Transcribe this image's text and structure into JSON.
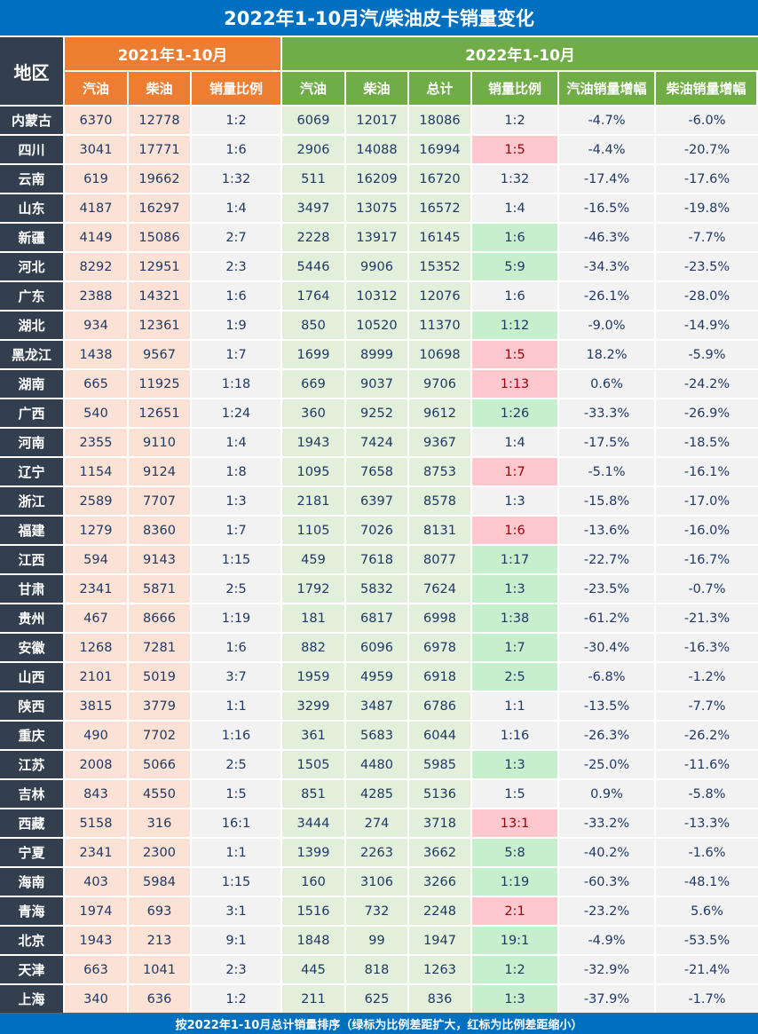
{
  "title": "2022年1-10月汽/柴油皮卡销量变化",
  "footer": "按2022年1-10月总计销量排序（绿标为比例差距扩大，红标为比例差距缩小）",
  "colors": {
    "title_bg": "#0070c0",
    "region_bg": "#333f4f",
    "header_2021": "#ed7d31",
    "header_2022": "#70ad47",
    "cell_2021": "#fbe2d5",
    "cell_2022": "#e2efda",
    "highlight_green": "#c6efce",
    "highlight_red": "#ffc7ce"
  },
  "chart_data": {
    "type": "table",
    "header": {
      "region": "地区",
      "group_2021": "2021年1-10月",
      "group_2022": "2022年1-10月"
    },
    "columns": [
      "汽油",
      "柴油",
      "销量比例",
      "汽油",
      "柴油",
      "总计",
      "销量比例",
      "汽油销量增幅",
      "柴油销量增幅"
    ],
    "rows": [
      {
        "region": "内蒙古",
        "values": [
          "6370",
          "12778",
          "1:2",
          "6069",
          "12017",
          "18086",
          "1:2",
          "-4.7%",
          "-6.0%"
        ],
        "ratio_mark": ""
      },
      {
        "region": "四川",
        "values": [
          "3041",
          "17771",
          "1:6",
          "2906",
          "14088",
          "16994",
          "1:5",
          "-4.4%",
          "-20.7%"
        ],
        "ratio_mark": "red"
      },
      {
        "region": "云南",
        "values": [
          "619",
          "19662",
          "1:32",
          "511",
          "16209",
          "16720",
          "1:32",
          "-17.4%",
          "-17.6%"
        ],
        "ratio_mark": ""
      },
      {
        "region": "山东",
        "values": [
          "4187",
          "16297",
          "1:4",
          "3497",
          "13075",
          "16572",
          "1:4",
          "-16.5%",
          "-19.8%"
        ],
        "ratio_mark": ""
      },
      {
        "region": "新疆",
        "values": [
          "4149",
          "15086",
          "2:7",
          "2228",
          "13917",
          "16145",
          "1:6",
          "-46.3%",
          "-7.7%"
        ],
        "ratio_mark": "green"
      },
      {
        "region": "河北",
        "values": [
          "8292",
          "12951",
          "2:3",
          "5446",
          "9906",
          "15352",
          "5:9",
          "-34.3%",
          "-23.5%"
        ],
        "ratio_mark": "green"
      },
      {
        "region": "广东",
        "values": [
          "2388",
          "14321",
          "1:6",
          "1764",
          "10312",
          "12076",
          "1:6",
          "-26.1%",
          "-28.0%"
        ],
        "ratio_mark": ""
      },
      {
        "region": "湖北",
        "values": [
          "934",
          "12361",
          "1:9",
          "850",
          "10520",
          "11370",
          "1:12",
          "-9.0%",
          "-14.9%"
        ],
        "ratio_mark": "green"
      },
      {
        "region": "黑龙江",
        "values": [
          "1438",
          "9567",
          "1:7",
          "1699",
          "8999",
          "10698",
          "1:5",
          "18.2%",
          "-5.9%"
        ],
        "ratio_mark": "red"
      },
      {
        "region": "湖南",
        "values": [
          "665",
          "11925",
          "1:18",
          "669",
          "9037",
          "9706",
          "1:13",
          "0.6%",
          "-24.2%"
        ],
        "ratio_mark": "red"
      },
      {
        "region": "广西",
        "values": [
          "540",
          "12651",
          "1:24",
          "360",
          "9252",
          "9612",
          "1:26",
          "-33.3%",
          "-26.9%"
        ],
        "ratio_mark": "green"
      },
      {
        "region": "河南",
        "values": [
          "2355",
          "9110",
          "1:4",
          "1943",
          "7424",
          "9367",
          "1:4",
          "-17.5%",
          "-18.5%"
        ],
        "ratio_mark": ""
      },
      {
        "region": "辽宁",
        "values": [
          "1154",
          "9124",
          "1:8",
          "1095",
          "7658",
          "8753",
          "1:7",
          "-5.1%",
          "-16.1%"
        ],
        "ratio_mark": "red"
      },
      {
        "region": "浙江",
        "values": [
          "2589",
          "7707",
          "1:3",
          "2181",
          "6397",
          "8578",
          "1:3",
          "-15.8%",
          "-17.0%"
        ],
        "ratio_mark": ""
      },
      {
        "region": "福建",
        "values": [
          "1279",
          "8360",
          "1:7",
          "1105",
          "7026",
          "8131",
          "1:6",
          "-13.6%",
          "-16.0%"
        ],
        "ratio_mark": "red"
      },
      {
        "region": "江西",
        "values": [
          "594",
          "9143",
          "1:15",
          "459",
          "7618",
          "8077",
          "1:17",
          "-22.7%",
          "-16.7%"
        ],
        "ratio_mark": "green"
      },
      {
        "region": "甘肃",
        "values": [
          "2341",
          "5871",
          "2:5",
          "1792",
          "5832",
          "7624",
          "1:3",
          "-23.5%",
          "-0.7%"
        ],
        "ratio_mark": "green"
      },
      {
        "region": "贵州",
        "values": [
          "467",
          "8666",
          "1:19",
          "181",
          "6817",
          "6998",
          "1:38",
          "-61.2%",
          "-21.3%"
        ],
        "ratio_mark": "green"
      },
      {
        "region": "安徽",
        "values": [
          "1268",
          "7281",
          "1:6",
          "882",
          "6096",
          "6978",
          "1:7",
          "-30.4%",
          "-16.3%"
        ],
        "ratio_mark": "green"
      },
      {
        "region": "山西",
        "values": [
          "2101",
          "5019",
          "3:7",
          "1959",
          "4959",
          "6918",
          "2:5",
          "-6.8%",
          "-1.2%"
        ],
        "ratio_mark": "green"
      },
      {
        "region": "陕西",
        "values": [
          "3815",
          "3779",
          "1:1",
          "3299",
          "3487",
          "6786",
          "1:1",
          "-13.5%",
          "-7.7%"
        ],
        "ratio_mark": ""
      },
      {
        "region": "重庆",
        "values": [
          "490",
          "7702",
          "1:16",
          "361",
          "5683",
          "6044",
          "1:16",
          "-26.3%",
          "-26.2%"
        ],
        "ratio_mark": ""
      },
      {
        "region": "江苏",
        "values": [
          "2008",
          "5066",
          "2:5",
          "1505",
          "4480",
          "5985",
          "1:3",
          "-25.0%",
          "-11.6%"
        ],
        "ratio_mark": "green"
      },
      {
        "region": "吉林",
        "values": [
          "843",
          "4550",
          "1:5",
          "851",
          "4285",
          "5136",
          "1:5",
          "0.9%",
          "-5.8%"
        ],
        "ratio_mark": ""
      },
      {
        "region": "西藏",
        "values": [
          "5158",
          "316",
          "16:1",
          "3444",
          "274",
          "3718",
          "13:1",
          "-33.2%",
          "-13.3%"
        ],
        "ratio_mark": "red"
      },
      {
        "region": "宁夏",
        "values": [
          "2341",
          "2300",
          "1:1",
          "1399",
          "2263",
          "3662",
          "5:8",
          "-40.2%",
          "-1.6%"
        ],
        "ratio_mark": "green"
      },
      {
        "region": "海南",
        "values": [
          "403",
          "5984",
          "1:15",
          "160",
          "3106",
          "3266",
          "1:19",
          "-60.3%",
          "-48.1%"
        ],
        "ratio_mark": "green"
      },
      {
        "region": "青海",
        "values": [
          "1974",
          "693",
          "3:1",
          "1516",
          "732",
          "2248",
          "2:1",
          "-23.2%",
          "5.6%"
        ],
        "ratio_mark": "red"
      },
      {
        "region": "北京",
        "values": [
          "1943",
          "213",
          "9:1",
          "1848",
          "99",
          "1947",
          "19:1",
          "-4.9%",
          "-53.5%"
        ],
        "ratio_mark": "green"
      },
      {
        "region": "天津",
        "values": [
          "663",
          "1041",
          "2:3",
          "445",
          "818",
          "1263",
          "1:2",
          "-32.9%",
          "-21.4%"
        ],
        "ratio_mark": "green"
      },
      {
        "region": "上海",
        "values": [
          "340",
          "636",
          "1:2",
          "211",
          "625",
          "836",
          "1:3",
          "-37.9%",
          "-1.7%"
        ],
        "ratio_mark": "green"
      }
    ]
  }
}
